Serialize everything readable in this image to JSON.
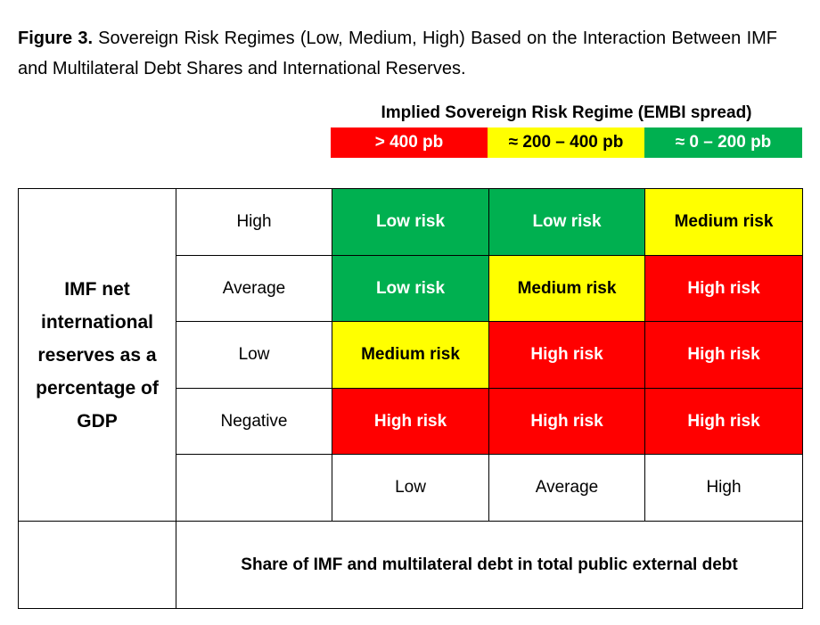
{
  "caption": {
    "label": "Figure 3.",
    "text": "Sovereign Risk Regimes (Low, Medium, High) Based on the Interaction Between IMF and Multilateral Debt Shares and International Reserves."
  },
  "legend": {
    "title": "Implied Sovereign Risk Regime (EMBI spread)",
    "items": [
      {
        "label": "> 400 pb",
        "color": "#ff0000"
      },
      {
        "label": "≈ 200 – 400 pb",
        "color": "#ffff00"
      },
      {
        "label": "≈ 0 – 200 pb",
        "color": "#00b050"
      }
    ]
  },
  "table": {
    "y_axis_label": "IMF net international reserves as a percentage of GDP",
    "rows": [
      {
        "label": "High",
        "cells": [
          {
            "text": "Low risk",
            "color": "#00b050"
          },
          {
            "text": "Low risk",
            "color": "#00b050"
          },
          {
            "text": "Medium risk",
            "color": "#ffff00"
          }
        ]
      },
      {
        "label": "Average",
        "cells": [
          {
            "text": "Low risk",
            "color": "#00b050"
          },
          {
            "text": "Medium risk",
            "color": "#ffff00"
          },
          {
            "text": "High risk",
            "color": "#ff0000"
          }
        ]
      },
      {
        "label": "Low",
        "cells": [
          {
            "text": "Medium risk",
            "color": "#ffff00"
          },
          {
            "text": "High risk",
            "color": "#ff0000"
          },
          {
            "text": "High risk",
            "color": "#ff0000"
          }
        ]
      },
      {
        "label": "Negative",
        "cells": [
          {
            "text": "High risk",
            "color": "#ff0000"
          },
          {
            "text": "High risk",
            "color": "#ff0000"
          },
          {
            "text": "High risk",
            "color": "#ff0000"
          }
        ]
      }
    ],
    "x_categories": [
      "Low",
      "Average",
      "High"
    ],
    "x_axis_label": "Share of IMF and multilateral debt in total public external debt"
  }
}
